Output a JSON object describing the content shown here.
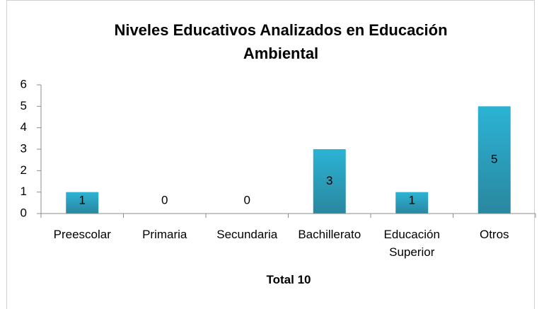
{
  "chart_data": {
    "type": "bar",
    "title": "Niveles Educativos Analizados en Educación Ambiental",
    "categories": [
      "Preescolar",
      "Primaria",
      "Secundaria",
      "Bachillerato",
      "Educación Superior",
      "Otros"
    ],
    "values": [
      1,
      0,
      0,
      3,
      1,
      5
    ],
    "color": "#2bb3d4",
    "xlabel": "Total 10",
    "ylim": [
      0,
      6
    ],
    "yticks": [
      0,
      1,
      2,
      3,
      4,
      5,
      6
    ],
    "grid": false
  }
}
